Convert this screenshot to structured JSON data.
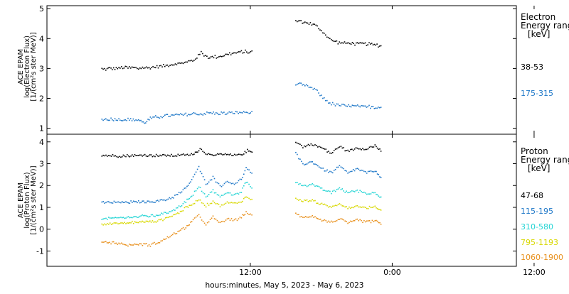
{
  "chart_data": [
    {
      "type": "scatter",
      "panel": "electron",
      "ylabel_lines": [
        "ACE EPAM",
        "log(Electron Flux)",
        "[1/(cm²s ster MeV)]"
      ],
      "ylim": [
        0.8,
        5.1
      ],
      "yticks": [
        1,
        2,
        3,
        4,
        5
      ],
      "legend_title": [
        "Electron",
        "Energy range",
        "[keV]"
      ],
      "series": [
        {
          "name": "38-53",
          "color": "#000000",
          "points": [
            [
              -0.6,
              3.0
            ],
            [
              0.5,
              3.02
            ],
            [
              1.5,
              3.05
            ],
            [
              2.5,
              3.02
            ],
            [
              3.5,
              3.05
            ],
            [
              4.5,
              3.1
            ],
            [
              5.5,
              3.17
            ],
            [
              6.5,
              3.22
            ],
            [
              7.2,
              3.3
            ],
            [
              7.8,
              3.55
            ],
            [
              8.4,
              3.38
            ],
            [
              9.2,
              3.42
            ],
            [
              10.2,
              3.5
            ],
            [
              11.2,
              3.57
            ],
            [
              12.2,
              3.58
            ],
            [
              15.8,
              4.62
            ],
            [
              16.8,
              4.55
            ],
            [
              17.5,
              4.45
            ],
            [
              18.2,
              4.2
            ],
            [
              18.8,
              3.95
            ],
            [
              19.6,
              3.88
            ],
            [
              20.8,
              3.85
            ],
            [
              22.0,
              3.83
            ],
            [
              23.0,
              3.78
            ]
          ]
        },
        {
          "name": "175-315",
          "color": "#1f78c8",
          "points": [
            [
              -0.6,
              1.3
            ],
            [
              0.5,
              1.32
            ],
            [
              1.5,
              1.3
            ],
            [
              2.5,
              1.3
            ],
            [
              3.0,
              1.2
            ],
            [
              3.5,
              1.35
            ],
            [
              4.5,
              1.42
            ],
            [
              5.5,
              1.45
            ],
            [
              6.5,
              1.47
            ],
            [
              7.5,
              1.5
            ],
            [
              8.5,
              1.52
            ],
            [
              9.5,
              1.52
            ],
            [
              10.5,
              1.53
            ],
            [
              11.5,
              1.55
            ],
            [
              12.2,
              1.55
            ],
            [
              15.8,
              2.5
            ],
            [
              16.8,
              2.43
            ],
            [
              17.5,
              2.3
            ],
            [
              18.2,
              2.0
            ],
            [
              18.8,
              1.83
            ],
            [
              19.6,
              1.78
            ],
            [
              20.8,
              1.75
            ],
            [
              22.0,
              1.73
            ],
            [
              23.0,
              1.72
            ]
          ]
        }
      ]
    },
    {
      "type": "scatter",
      "panel": "proton",
      "ylabel_lines": [
        "ACE EPAM",
        "log(Proton Flux)",
        "[1/(cm²s ster MeV)]"
      ],
      "ylim": [
        -1.7,
        4.35
      ],
      "yticks": [
        -1,
        0,
        1,
        2,
        3,
        4
      ],
      "legend_title": [
        "Proton",
        "Energy range",
        "[keV]"
      ],
      "series": [
        {
          "name": "47-68",
          "color": "#000000",
          "points": [
            [
              -0.6,
              3.4
            ],
            [
              1,
              3.38
            ],
            [
              2.5,
              3.4
            ],
            [
              4,
              3.4
            ],
            [
              5.5,
              3.4
            ],
            [
              7.2,
              3.45
            ],
            [
              7.7,
              3.72
            ],
            [
              8.3,
              3.45
            ],
            [
              9.5,
              3.45
            ],
            [
              10.5,
              3.4
            ],
            [
              11.2,
              3.45
            ],
            [
              11.7,
              3.62
            ],
            [
              12.2,
              3.55
            ],
            [
              15.8,
              4.05
            ],
            [
              16.4,
              3.8
            ],
            [
              17.2,
              3.92
            ],
            [
              18.0,
              3.75
            ],
            [
              18.8,
              3.5
            ],
            [
              19.5,
              3.82
            ],
            [
              20.2,
              3.6
            ],
            [
              21.0,
              3.75
            ],
            [
              21.8,
              3.7
            ],
            [
              22.5,
              3.85
            ],
            [
              23.0,
              3.6
            ]
          ]
        },
        {
          "name": "115-195",
          "color": "#1f78c8",
          "points": [
            [
              -0.6,
              1.25
            ],
            [
              1,
              1.25
            ],
            [
              2.5,
              1.27
            ],
            [
              4,
              1.3
            ],
            [
              5,
              1.4
            ],
            [
              5.8,
              1.6
            ],
            [
              6.5,
              1.9
            ],
            [
              7.0,
              2.3
            ],
            [
              7.6,
              2.85
            ],
            [
              8.2,
              2.1
            ],
            [
              8.8,
              2.4
            ],
            [
              9.4,
              2.0
            ],
            [
              10.0,
              2.2
            ],
            [
              10.6,
              2.1
            ],
            [
              11.2,
              2.3
            ],
            [
              11.6,
              2.85
            ],
            [
              12.2,
              2.5
            ],
            [
              15.8,
              3.5
            ],
            [
              16.4,
              3.0
            ],
            [
              17.2,
              3.1
            ],
            [
              18.0,
              2.8
            ],
            [
              18.8,
              2.6
            ],
            [
              19.5,
              2.9
            ],
            [
              20.2,
              2.6
            ],
            [
              21.0,
              2.8
            ],
            [
              21.8,
              2.6
            ],
            [
              22.5,
              2.7
            ],
            [
              23.0,
              2.4
            ]
          ]
        },
        {
          "name": "310-580",
          "color": "#22d4d4",
          "points": [
            [
              -0.6,
              0.5
            ],
            [
              1,
              0.55
            ],
            [
              2.5,
              0.6
            ],
            [
              4,
              0.65
            ],
            [
              5,
              0.8
            ],
            [
              5.8,
              1.0
            ],
            [
              6.5,
              1.3
            ],
            [
              7.0,
              1.5
            ],
            [
              7.6,
              2.0
            ],
            [
              8.2,
              1.5
            ],
            [
              8.8,
              1.8
            ],
            [
              9.4,
              1.5
            ],
            [
              10.0,
              1.7
            ],
            [
              10.6,
              1.6
            ],
            [
              11.2,
              1.75
            ],
            [
              11.6,
              2.2
            ],
            [
              12.2,
              1.85
            ],
            [
              15.8,
              2.2
            ],
            [
              16.4,
              2.0
            ],
            [
              17.2,
              2.1
            ],
            [
              18.0,
              1.85
            ],
            [
              18.8,
              1.7
            ],
            [
              19.5,
              1.9
            ],
            [
              20.2,
              1.7
            ],
            [
              21.0,
              1.8
            ],
            [
              21.8,
              1.65
            ],
            [
              22.5,
              1.7
            ],
            [
              23.0,
              1.5
            ]
          ]
        },
        {
          "name": "795-1193",
          "color": "#d8d800",
          "points": [
            [
              -0.6,
              0.25
            ],
            [
              1,
              0.3
            ],
            [
              2.5,
              0.35
            ],
            [
              4,
              0.4
            ],
            [
              5,
              0.55
            ],
            [
              5.8,
              0.75
            ],
            [
              6.5,
              1.0
            ],
            [
              7.0,
              1.15
            ],
            [
              7.6,
              1.4
            ],
            [
              8.2,
              1.1
            ],
            [
              8.8,
              1.3
            ],
            [
              9.4,
              1.1
            ],
            [
              10.0,
              1.25
            ],
            [
              10.6,
              1.2
            ],
            [
              11.2,
              1.3
            ],
            [
              11.6,
              1.5
            ],
            [
              12.2,
              1.3
            ],
            [
              15.8,
              1.45
            ],
            [
              16.4,
              1.3
            ],
            [
              17.2,
              1.35
            ],
            [
              18.0,
              1.15
            ],
            [
              18.8,
              1.05
            ],
            [
              19.5,
              1.2
            ],
            [
              20.2,
              1.0
            ],
            [
              21.0,
              1.1
            ],
            [
              21.8,
              1.0
            ],
            [
              22.5,
              1.05
            ],
            [
              23.0,
              0.9
            ]
          ]
        },
        {
          "name": "1060-1900",
          "color": "#e8901c",
          "points": [
            [
              -0.6,
              -0.55
            ],
            [
              0.5,
              -0.6
            ],
            [
              1.5,
              -0.7
            ],
            [
              2.5,
              -0.65
            ],
            [
              3.5,
              -0.7
            ],
            [
              4.5,
              -0.5
            ],
            [
              5.5,
              -0.2
            ],
            [
              6.5,
              0.1
            ],
            [
              7.0,
              0.35
            ],
            [
              7.6,
              0.7
            ],
            [
              8.2,
              0.2
            ],
            [
              8.8,
              0.6
            ],
            [
              9.4,
              0.3
            ],
            [
              10.0,
              0.5
            ],
            [
              10.6,
              0.4
            ],
            [
              11.2,
              0.6
            ],
            [
              11.6,
              0.8
            ],
            [
              12.2,
              0.6
            ],
            [
              15.8,
              0.75
            ],
            [
              16.4,
              0.55
            ],
            [
              17.2,
              0.65
            ],
            [
              18.0,
              0.45
            ],
            [
              18.8,
              0.35
            ],
            [
              19.5,
              0.5
            ],
            [
              20.2,
              0.3
            ],
            [
              21.0,
              0.45
            ],
            [
              21.8,
              0.35
            ],
            [
              22.5,
              0.4
            ],
            [
              23.0,
              0.25
            ]
          ]
        }
      ]
    }
  ],
  "x_axis": {
    "unit": "hours from 2023-05-05 00:00",
    "range": [
      -5.2,
      34.5
    ],
    "ticks": [
      {
        "value": 12,
        "label": "12:00"
      },
      {
        "value": 24,
        "label": "0:00"
      },
      {
        "value": 36,
        "label": "12:00"
      }
    ],
    "xlabel": "hours:minutes,  May  5, 2023 - May  6, 2023"
  }
}
